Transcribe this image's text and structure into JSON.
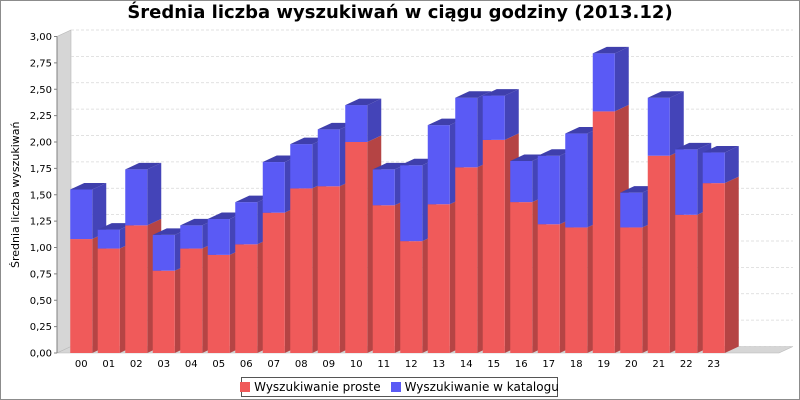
{
  "colors": {
    "series_front": [
      "#f05a5a",
      "#5a5af5"
    ],
    "series_top": [
      "#a93f3f",
      "#3f3fac"
    ],
    "series_side": [
      "#b54444",
      "#4444b8"
    ],
    "wall": "#d6d6d6",
    "gridline": "#d8d8d8"
  },
  "chart_data": {
    "type": "bar",
    "stacked": true,
    "three_d": true,
    "title": "Średnia liczba wyszukiwań w ciągu godziny (2013.12)",
    "xlabel": "",
    "ylabel": "Średnia liczba wyszukiwań",
    "ylim": [
      0,
      3
    ],
    "y_ticks": [
      "0,00",
      "0,25",
      "0,50",
      "0,75",
      "1,00",
      "1,25",
      "1,50",
      "1,75",
      "2,00",
      "2,25",
      "2,50",
      "2,75",
      "3,00"
    ],
    "grid": true,
    "legend_position": "bottom",
    "categories": [
      "00",
      "01",
      "02",
      "03",
      "04",
      "05",
      "06",
      "07",
      "08",
      "09",
      "10",
      "11",
      "12",
      "13",
      "14",
      "15",
      "16",
      "17",
      "18",
      "19",
      "20",
      "21",
      "22",
      "23"
    ],
    "series": [
      {
        "name": "Wyszukiwanie proste",
        "values": [
          1.08,
          0.99,
          1.21,
          0.78,
          0.99,
          0.93,
          1.03,
          1.33,
          1.56,
          1.58,
          2.0,
          1.4,
          1.06,
          1.41,
          1.76,
          2.02,
          1.43,
          1.22,
          1.19,
          2.29,
          1.19,
          1.87,
          1.31,
          1.61
        ]
      },
      {
        "name": "Wyszukiwanie w katalogu",
        "values": [
          0.47,
          0.18,
          0.53,
          0.34,
          0.22,
          0.34,
          0.4,
          0.48,
          0.42,
          0.54,
          0.35,
          0.34,
          0.72,
          0.75,
          0.66,
          0.42,
          0.39,
          0.65,
          0.89,
          0.55,
          0.33,
          0.55,
          0.62,
          0.29
        ]
      }
    ]
  }
}
